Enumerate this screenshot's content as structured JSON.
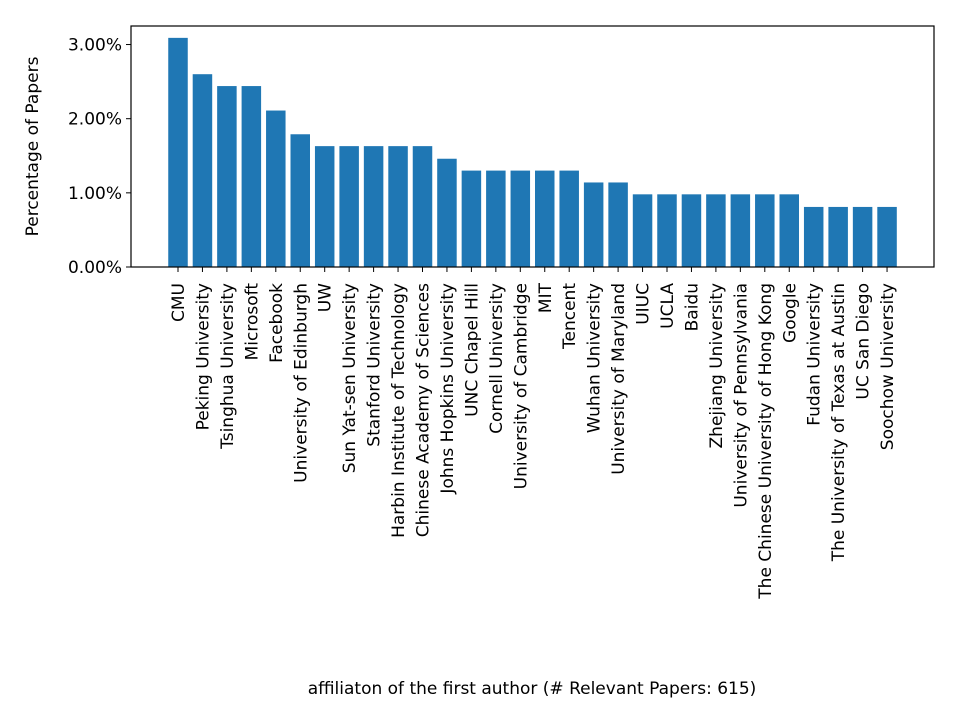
{
  "chart_data": {
    "type": "bar",
    "title": "",
    "xlabel": "affiliaton of the first author (# Relevant Papers: 615)",
    "ylabel": "Percentage of Papers",
    "ylim": [
      0,
      3.25
    ],
    "yticks": [
      0,
      1,
      2,
      3
    ],
    "ytick_labels": [
      "0.00%",
      "1.00%",
      "2.00%",
      "3.00%"
    ],
    "bar_color": "#1f77b4",
    "grid": false,
    "categories": [
      "CMU",
      "Peking University",
      "Tsinghua University",
      "Microsoft",
      "Facebook",
      "University of Edinburgh",
      "UW",
      "Sun Yat-sen University",
      "Stanford University",
      "Harbin Institute of Technology",
      "Chinese Academy of Sciences",
      "Johns Hopkins University",
      "UNC Chapel Hill",
      "Cornell University",
      "University of Cambridge",
      "MIT",
      "Tencent",
      "Wuhan University",
      "University of Maryland",
      "UIUC",
      "UCLA",
      "Baidu",
      "Zhejiang University",
      "University of Pennsylvania",
      "The Chinese University of Hong Kong",
      "Google",
      "Fudan University",
      "The University of Texas at Austin",
      "UC San Diego",
      "Soochow University"
    ],
    "values": [
      3.09,
      2.6,
      2.44,
      2.44,
      2.11,
      1.79,
      1.63,
      1.63,
      1.63,
      1.63,
      1.63,
      1.46,
      1.3,
      1.3,
      1.3,
      1.3,
      1.3,
      1.14,
      1.14,
      0.98,
      0.98,
      0.98,
      0.98,
      0.98,
      0.98,
      0.98,
      0.81,
      0.81,
      0.81,
      0.81
    ]
  }
}
